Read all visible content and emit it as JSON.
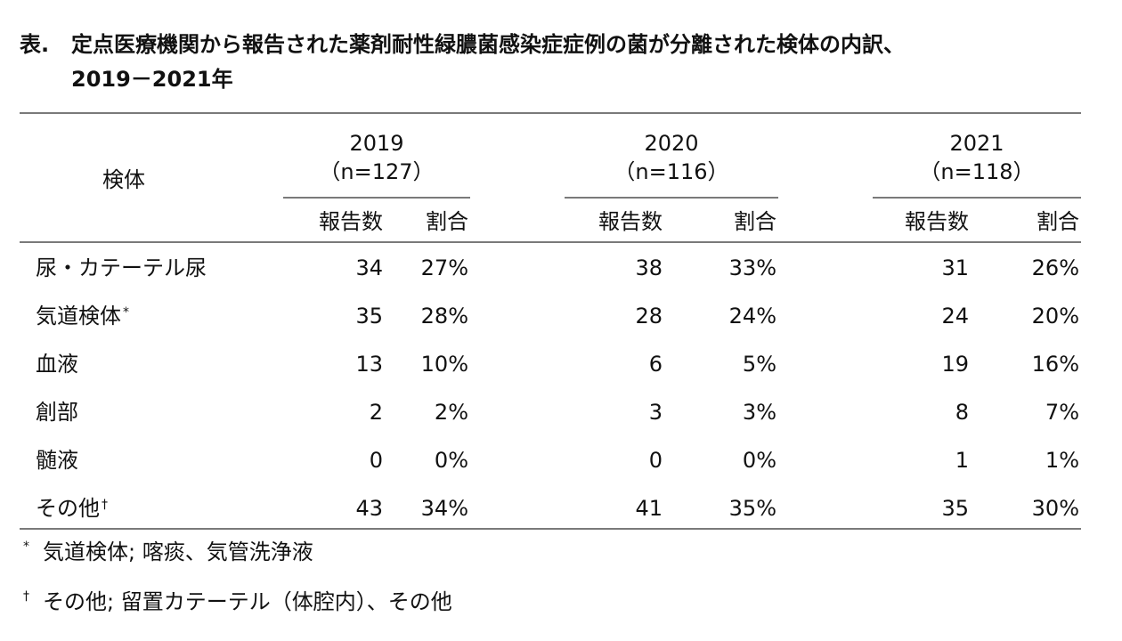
{
  "title": {
    "prefix": "表.",
    "line1": "定点医療機関から報告された薬剤耐性緑膿菌感染症症例の菌が分離された検体の内訳、",
    "line2": "2019－2021年"
  },
  "table": {
    "row_header": "検体",
    "sub_headers": {
      "count": "報告数",
      "ratio": "割合"
    },
    "years": [
      {
        "year": "2019",
        "n": "（n=127）"
      },
      {
        "year": "2020",
        "n": "（n=116）"
      },
      {
        "year": "2021",
        "n": "（n=118）"
      }
    ],
    "rows": [
      {
        "label": "尿・カテーテル尿",
        "mark": "",
        "cells": [
          {
            "count": "34",
            "ratio": "27%"
          },
          {
            "count": "38",
            "ratio": "33%"
          },
          {
            "count": "31",
            "ratio": "26%"
          }
        ]
      },
      {
        "label": "気道検体",
        "mark": "*",
        "cells": [
          {
            "count": "35",
            "ratio": "28%"
          },
          {
            "count": "28",
            "ratio": "24%"
          },
          {
            "count": "24",
            "ratio": "20%"
          }
        ]
      },
      {
        "label": "血液",
        "mark": "",
        "cells": [
          {
            "count": "13",
            "ratio": "10%"
          },
          {
            "count": "6",
            "ratio": "5%"
          },
          {
            "count": "19",
            "ratio": "16%"
          }
        ]
      },
      {
        "label": "創部",
        "mark": "",
        "cells": [
          {
            "count": "2",
            "ratio": "2%"
          },
          {
            "count": "3",
            "ratio": "3%"
          },
          {
            "count": "8",
            "ratio": "7%"
          }
        ]
      },
      {
        "label": "髄液",
        "mark": "",
        "cells": [
          {
            "count": "0",
            "ratio": "0%"
          },
          {
            "count": "0",
            "ratio": "0%"
          },
          {
            "count": "1",
            "ratio": "1%"
          }
        ]
      },
      {
        "label": "その他",
        "mark": "†",
        "cells": [
          {
            "count": "43",
            "ratio": "34%"
          },
          {
            "count": "41",
            "ratio": "35%"
          },
          {
            "count": "35",
            "ratio": "30%"
          }
        ]
      }
    ]
  },
  "footnotes": [
    {
      "mark": "*",
      "text": "気道検体; 喀痰、気管洗浄液"
    },
    {
      "mark": "†",
      "text": "その他; 留置カテーテル（体腔内）、その他"
    }
  ]
}
